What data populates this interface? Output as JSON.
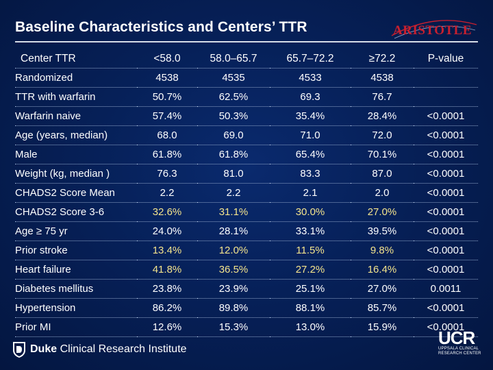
{
  "title": "Baseline Characteristics and Centers’ TTR",
  "logo": {
    "name": "ARISTOTLE",
    "icon": "aristotle-logo"
  },
  "table": {
    "headers": [
      "Center TTR",
      "<58.0",
      "58.0–65.7",
      "65.7–72.2",
      "≥72.2",
      "P-value"
    ],
    "rows": [
      {
        "label": "Randomized",
        "values": [
          "4538",
          "4535",
          "4533",
          "4538",
          ""
        ]
      },
      {
        "label": "TTR with warfarin",
        "values": [
          "50.7%",
          "62.5%",
          "69.3",
          "76.7",
          ""
        ]
      },
      {
        "label": "Warfarin naive",
        "values": [
          "57.4%",
          "50.3%",
          "35.4%",
          "28.4%",
          "<0.0001"
        ]
      },
      {
        "label": "Age (years, median)",
        "values": [
          "68.0",
          "69.0",
          "71.0",
          "72.0",
          "<0.0001"
        ]
      },
      {
        "label": "Male",
        "values": [
          "61.8%",
          "61.8%",
          "65.4%",
          "70.1%",
          "<0.0001"
        ]
      },
      {
        "label": "Weight (kg, median )",
        "values": [
          "76.3",
          "81.0",
          "83.3",
          "87.0",
          "<0.0001"
        ]
      },
      {
        "label": "CHADS2 Score Mean",
        "values": [
          "2.2",
          "2.2",
          "2.1",
          "2.0",
          "<0.0001"
        ]
      },
      {
        "label": "CHADS2 Score 3-6",
        "values": [
          "32.6%",
          "31.1%",
          "30.0%",
          "27.0%",
          "<0.0001"
        ]
      },
      {
        "label": "Age ≥ 75 yr",
        "values": [
          "24.0%",
          "28.1%",
          "33.1%",
          "39.5%",
          "<0.0001"
        ]
      },
      {
        "label": "Prior stroke",
        "values": [
          "13.4%",
          "12.0%",
          "11.5%",
          "9.8%",
          "<0.0001"
        ]
      },
      {
        "label": "Heart failure",
        "values": [
          "41.8%",
          "36.5%",
          "27.2%",
          "16.4%",
          "<0.0001"
        ]
      },
      {
        "label": "Diabetes mellitus",
        "values": [
          "23.8%",
          "23.9%",
          "25.1%",
          "27.0%",
          "0.0011"
        ]
      },
      {
        "label": "Hypertension",
        "values": [
          "86.2%",
          "89.8%",
          "88.1%",
          "85.7%",
          "<0.0001"
        ]
      },
      {
        "label": "Prior MI",
        "values": [
          "12.6%",
          "15.3%",
          "13.0%",
          "15.9%",
          "<0.0001"
        ]
      }
    ],
    "highlight_rows": [
      7,
      9,
      10
    ]
  },
  "footer": {
    "duke_bold": "Duke",
    "duke_rest": "Clinical Research Institute",
    "duke_icon": "duke-shield-icon",
    "ucr_main": "UCR",
    "ucr_line1": "UPPSALA CLINICAL",
    "ucr_line2": "RESEARCH CENTER"
  },
  "colors": {
    "background": "#062058",
    "highlight_text": "#f4e48c",
    "logo_red": "#c8202f",
    "rule": "#d8dde8"
  }
}
